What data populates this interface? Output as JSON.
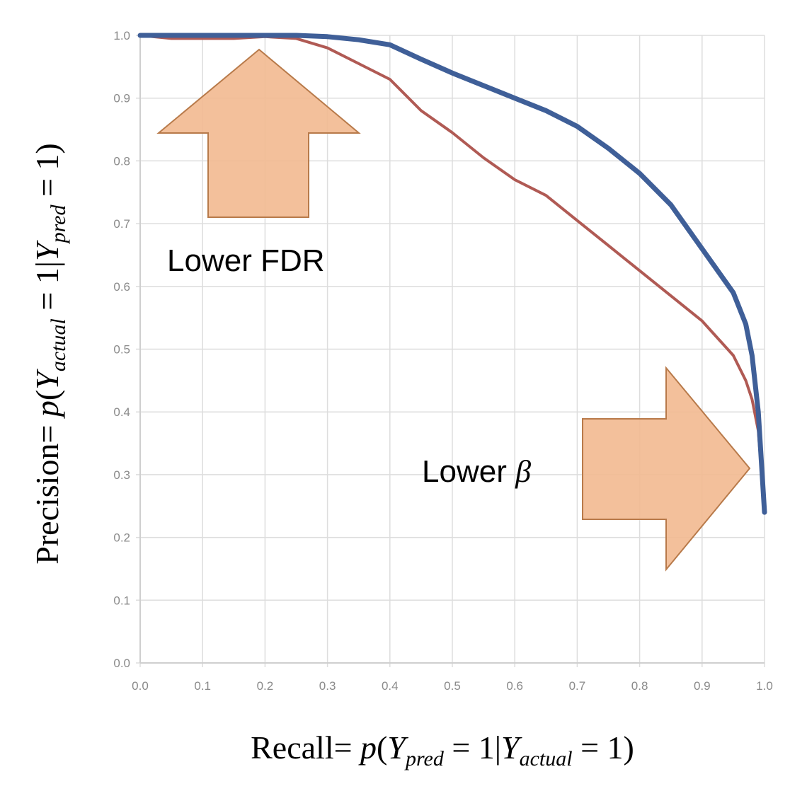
{
  "chart_data": {
    "type": "line",
    "title": "",
    "xlabel": "Recall= p(Y_pred = 1|Y_actual = 1)",
    "ylabel": "Precision= p(Y_actual = 1|Y_pred = 1)",
    "xlim": [
      0,
      1
    ],
    "ylim": [
      0,
      1
    ],
    "x_ticks": [
      0.0,
      0.1,
      0.2,
      0.3,
      0.4,
      0.5,
      0.6,
      0.7,
      0.8,
      0.9,
      1.0
    ],
    "y_ticks": [
      0.0,
      0.1,
      0.2,
      0.3,
      0.4,
      0.5,
      0.6,
      0.7,
      0.8,
      0.9,
      1.0
    ],
    "x_tick_labels": [
      "0.0",
      "0.1",
      "0.2",
      "0.3",
      "0.4",
      "0.5",
      "0.6",
      "0.7",
      "0.8",
      "0.9",
      "1.0"
    ],
    "y_tick_labels": [
      "0.0",
      "0.1",
      "0.2",
      "0.3",
      "0.4",
      "0.5",
      "0.6",
      "0.7",
      "0.8",
      "0.9",
      "1.0"
    ],
    "grid": true,
    "legend": "none",
    "series": [
      {
        "color": "#3f5f98",
        "x": [
          0.0,
          0.05,
          0.1,
          0.15,
          0.2,
          0.25,
          0.3,
          0.35,
          0.4,
          0.45,
          0.5,
          0.55,
          0.6,
          0.65,
          0.7,
          0.75,
          0.8,
          0.85,
          0.9,
          0.95,
          0.97,
          0.98,
          0.99,
          1.0
        ],
        "y": [
          1.0,
          1.0,
          1.0,
          1.0,
          1.0,
          1.0,
          0.998,
          0.993,
          0.985,
          0.962,
          0.94,
          0.92,
          0.9,
          0.88,
          0.855,
          0.82,
          0.78,
          0.73,
          0.66,
          0.59,
          0.54,
          0.49,
          0.4,
          0.24
        ]
      },
      {
        "color": "#b05a54",
        "x": [
          0.0,
          0.05,
          0.1,
          0.15,
          0.2,
          0.25,
          0.3,
          0.35,
          0.4,
          0.45,
          0.5,
          0.55,
          0.6,
          0.65,
          0.7,
          0.75,
          0.8,
          0.85,
          0.9,
          0.95,
          0.97,
          0.98,
          0.99,
          1.0
        ],
        "y": [
          1.0,
          0.995,
          0.995,
          0.995,
          0.998,
          0.995,
          0.98,
          0.955,
          0.93,
          0.88,
          0.845,
          0.805,
          0.77,
          0.745,
          0.705,
          0.665,
          0.625,
          0.585,
          0.545,
          0.49,
          0.45,
          0.42,
          0.37,
          0.24
        ]
      }
    ],
    "annotations": [
      {
        "text": "Lower FDR",
        "arrow_direction": "up",
        "color": "#f2b990"
      },
      {
        "text": "Lower ",
        "symbol": "β",
        "arrow_direction": "right",
        "color": "#f2b990"
      }
    ],
    "colors": {
      "grid": "#dddddd",
      "tick_text": "#8a8a8a",
      "arrow_fill": "#f2b990",
      "arrow_stroke": "#b87a4a"
    }
  }
}
